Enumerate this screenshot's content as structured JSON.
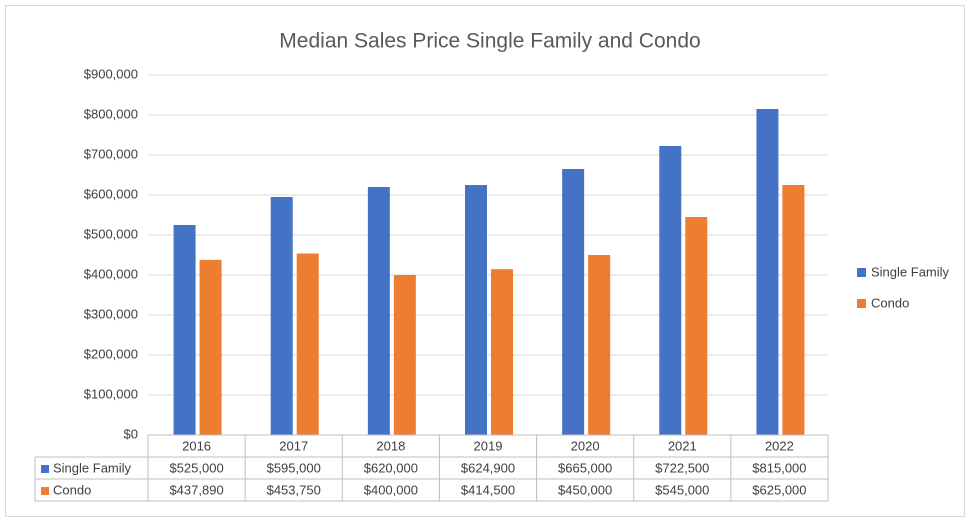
{
  "chart_data": {
    "type": "bar",
    "title": "Median Sales Price Single Family and Condo",
    "categories": [
      "2016",
      "2017",
      "2018",
      "2019",
      "2020",
      "2021",
      "2022"
    ],
    "series": [
      {
        "name": "Single Family",
        "color": "#4472c4",
        "values": [
          525000,
          595000,
          620000,
          624900,
          665000,
          722500,
          815000
        ],
        "value_labels": [
          "$525,000",
          "$595,000",
          "$620,000",
          "$624,900",
          "$665,000",
          "$722,500",
          "$815,000"
        ]
      },
      {
        "name": "Condo",
        "color": "#ed7d31",
        "values": [
          437890,
          453750,
          400000,
          414500,
          450000,
          545000,
          625000
        ],
        "value_labels": [
          "$437,890",
          "$453,750",
          "$400,000",
          "$414,500",
          "$450,000",
          "$545,000",
          "$625,000"
        ]
      }
    ],
    "ylim": [
      0,
      900000
    ],
    "yticks": [
      {
        "value": 0,
        "label": "$0"
      },
      {
        "value": 100000,
        "label": "$100,000"
      },
      {
        "value": 200000,
        "label": "$200,000"
      },
      {
        "value": 300000,
        "label": "$300,000"
      },
      {
        "value": 400000,
        "label": "$400,000"
      },
      {
        "value": 500000,
        "label": "$500,000"
      },
      {
        "value": 600000,
        "label": "$600,000"
      },
      {
        "value": 700000,
        "label": "$700,000"
      },
      {
        "value": 800000,
        "label": "$800,000"
      },
      {
        "value": 900000,
        "label": "$900,000"
      }
    ],
    "grid": true,
    "legend": "right",
    "data_table": true
  }
}
